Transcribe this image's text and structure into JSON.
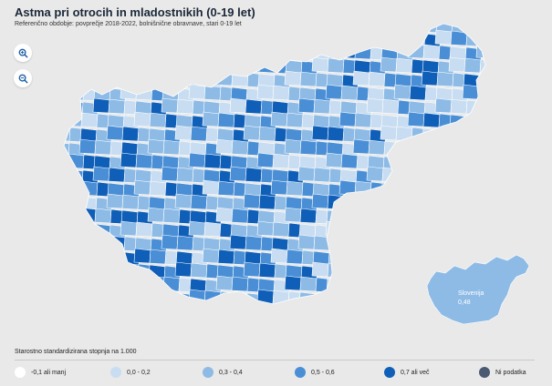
{
  "header": {
    "title": "Astma pri otrocih in mladostnikih (0-19 let)",
    "subtitle": "Referenčno obdobje: povprečje 2018-2022, bolnišnične obravnave, stari 0-19 let"
  },
  "controls": {
    "zoom_in_icon": "zoom-in-icon",
    "zoom_out_icon": "zoom-out-icon"
  },
  "colors": {
    "c0": "#ffffff",
    "c1": "#c8ddf1",
    "c2": "#8dbbe6",
    "c3": "#4a8fd6",
    "c4": "#0f5fb8",
    "na": "#4a5a72",
    "border": "#ffffff",
    "background": "#e9e9e9"
  },
  "inset": {
    "name": "Slovenija",
    "value": "0,48"
  },
  "legend": {
    "title": "Starostno standardizirana stopnja na 1.000",
    "items": [
      {
        "label": "-0,1 ali manj",
        "color": "#ffffff"
      },
      {
        "label": "0,0 - 0,2",
        "color": "#c8ddf1"
      },
      {
        "label": "0,3 - 0,4",
        "color": "#8dbbe6"
      },
      {
        "label": "0,5 - 0,6",
        "color": "#4a8fd6"
      },
      {
        "label": "0,7 ali več",
        "color": "#0f5fb8"
      },
      {
        "label": "Ni podatka",
        "color": "#4a5a72"
      }
    ]
  }
}
